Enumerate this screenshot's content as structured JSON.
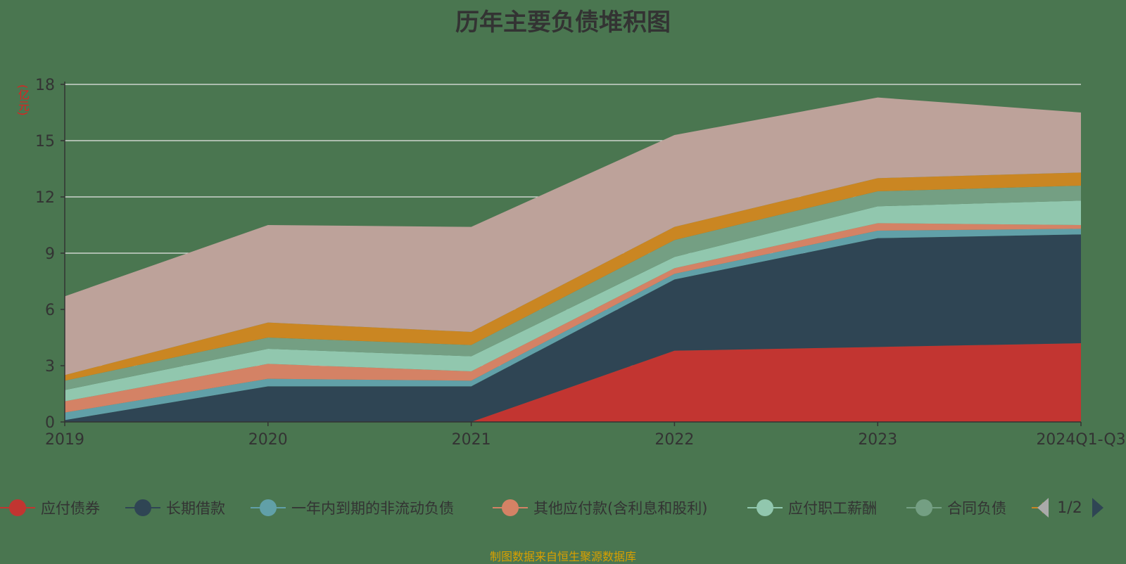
{
  "title": "历年主要负债堆积图",
  "unit_label": "(亿元)",
  "source": "制图数据来自恒生聚源数据库",
  "pager": {
    "text": "1/2"
  },
  "chart_data": {
    "type": "area",
    "stacked": true,
    "categories": [
      "2019",
      "2020",
      "2021",
      "2022",
      "2023",
      "2024Q1-Q3"
    ],
    "ylim": [
      0,
      18
    ],
    "yticks": [
      0,
      3,
      6,
      9,
      12,
      15,
      18
    ],
    "grid": true,
    "legend_position": "bottom",
    "series": [
      {
        "name": "应付债券",
        "color": "#c23531",
        "values": [
          0,
          0,
          0,
          3.8,
          4.0,
          4.2
        ]
      },
      {
        "name": "长期借款",
        "color": "#2f4554",
        "values": [
          0.1,
          1.9,
          1.9,
          3.8,
          5.8,
          5.8
        ]
      },
      {
        "name": "一年内到期的非流动负债",
        "color": "#61a0a8",
        "values": [
          0.4,
          0.4,
          0.3,
          0.3,
          0.4,
          0.3
        ]
      },
      {
        "name": "其他应付款(含利息和股利)",
        "color": "#d48265",
        "values": [
          0.6,
          0.8,
          0.5,
          0.3,
          0.4,
          0.2
        ]
      },
      {
        "name": "应付职工薪酬",
        "color": "#91c7ae",
        "values": [
          0.6,
          0.8,
          0.8,
          0.6,
          0.9,
          1.3
        ]
      },
      {
        "name": "合同负债",
        "color": "#749f83",
        "values": [
          0.5,
          0.6,
          0.6,
          0.9,
          0.8,
          0.8
        ]
      },
      {
        "name": "",
        "color": "#ca8622",
        "values": [
          0.3,
          0.8,
          0.7,
          0.7,
          0.7,
          0.7
        ]
      },
      {
        "name": "",
        "color": "#bda29a",
        "values": [
          4.2,
          5.2,
          5.6,
          4.9,
          4.3,
          3.2
        ]
      }
    ]
  }
}
